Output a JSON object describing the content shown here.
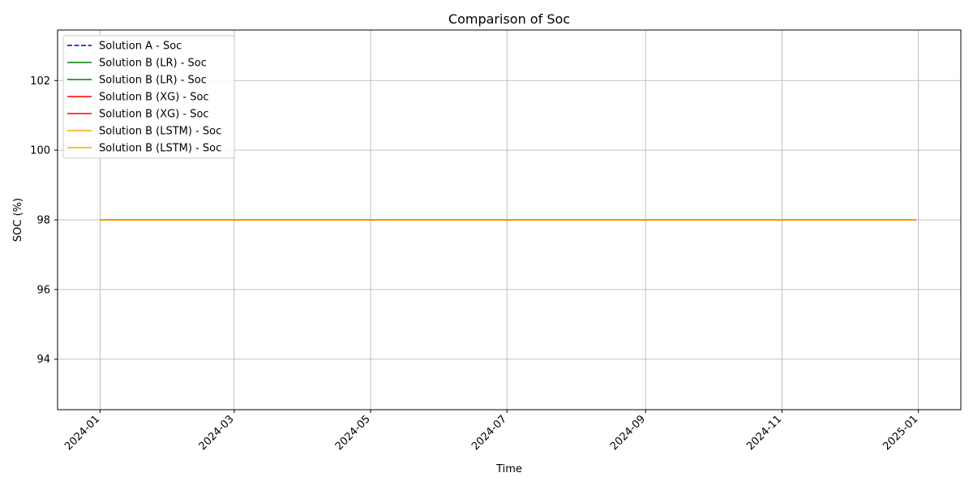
{
  "chart_data": {
    "type": "line",
    "title": "Comparison of Soc",
    "xlabel": "Time",
    "ylabel": "SOC (%)",
    "x_range": [
      "2023-12-13",
      "2025-01-20"
    ],
    "ylim": [
      92.55,
      103.45
    ],
    "x_ticks": [
      "2024-01",
      "2024-03",
      "2024-05",
      "2024-07",
      "2024-09",
      "2024-11",
      "2025-01"
    ],
    "x_tick_dates": [
      "2024-01-01",
      "2024-03-01",
      "2024-05-01",
      "2024-07-01",
      "2024-09-01",
      "2024-11-01",
      "2025-01-01"
    ],
    "y_ticks": [
      94,
      96,
      98,
      100,
      102
    ],
    "x_tick_rotation": "45 degrees",
    "grid": true,
    "legend_position": "upper-left",
    "series": [
      {
        "name": "Solution A - Soc",
        "color": "#0000cc",
        "style": "dashed",
        "x": [
          "2024-01-01",
          "2024-12-31"
        ],
        "y": [
          98,
          98
        ]
      },
      {
        "name": "Solution B (LR) - Soc",
        "color": "#008000",
        "style": "solid",
        "x": [
          "2024-01-01",
          "2024-12-31"
        ],
        "y": [
          98,
          98
        ]
      },
      {
        "name": "Solution B (LR) - Soc",
        "color": "#008000",
        "style": "solid",
        "x": [
          "2024-01-01",
          "2024-12-31"
        ],
        "y": [
          98,
          98
        ]
      },
      {
        "name": "Solution B (XG) - Soc",
        "color": "#ff0000",
        "style": "solid",
        "x": [
          "2024-01-01",
          "2024-12-31"
        ],
        "y": [
          98,
          98
        ]
      },
      {
        "name": "Solution B (XG) - Soc",
        "color": "#ff0000",
        "style": "solid",
        "x": [
          "2024-01-01",
          "2024-12-31"
        ],
        "y": [
          98,
          98
        ]
      },
      {
        "name": "Solution B (LSTM) - Soc",
        "color": "#ffa500",
        "style": "solid",
        "x": [
          "2024-01-01",
          "2024-12-31"
        ],
        "y": [
          98,
          98
        ]
      },
      {
        "name": "Solution B (LSTM) - Soc",
        "color": "#ffa500",
        "style": "solid",
        "x": [
          "2024-01-01",
          "2024-12-31"
        ],
        "y": [
          98,
          98
        ]
      }
    ]
  }
}
